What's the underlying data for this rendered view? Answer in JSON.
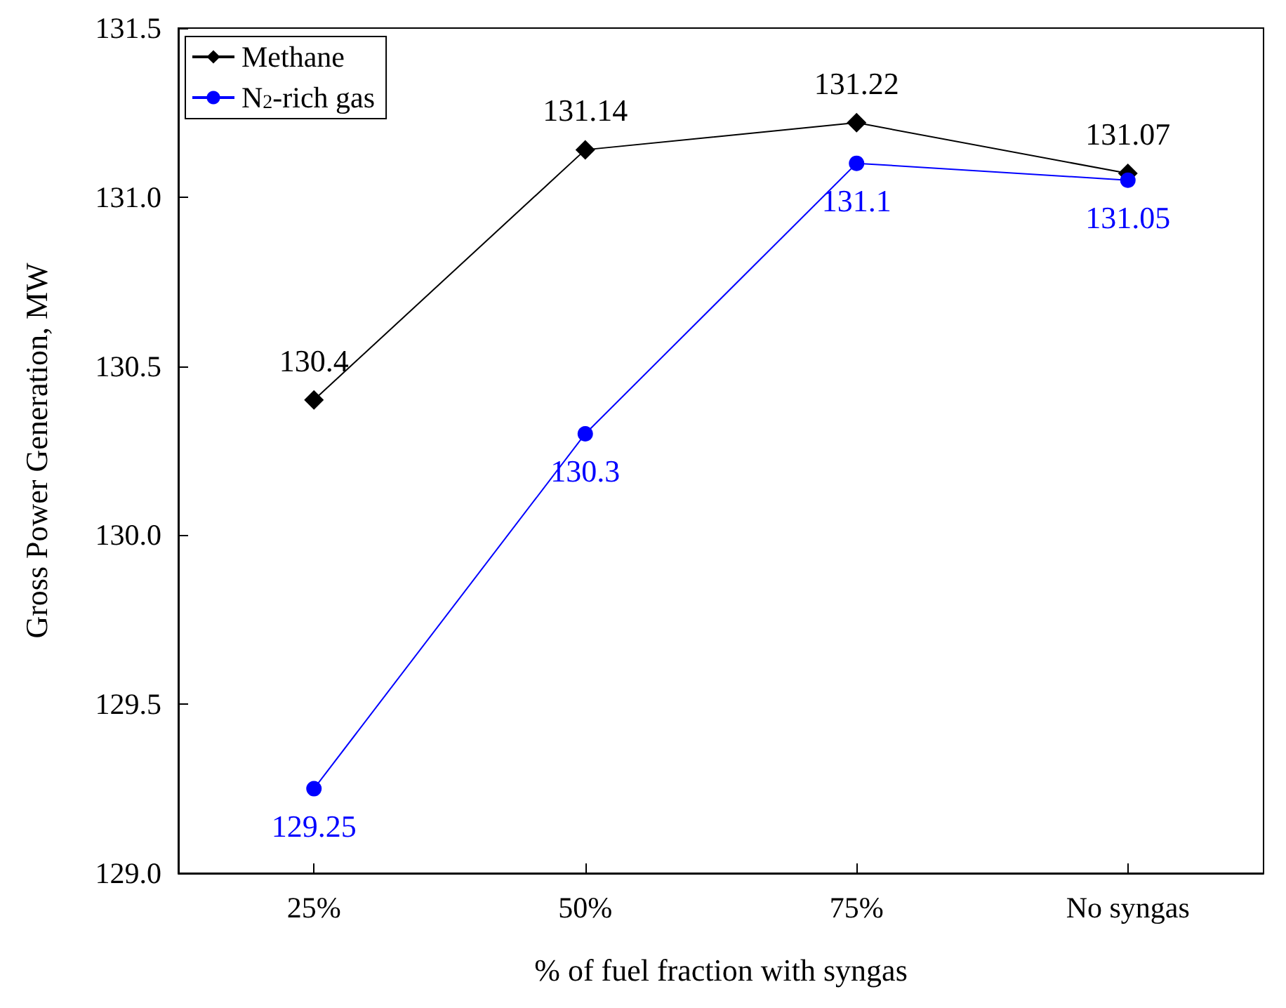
{
  "chart_data": {
    "type": "line",
    "xlabel": "% of fuel fraction with syngas",
    "ylabel": "Gross Power Generation, MW",
    "categories": [
      "25%",
      "50%",
      "75%",
      "No syngas"
    ],
    "series": [
      {
        "name": "Methane",
        "color": "#000000",
        "marker": "diamond",
        "values": [
          130.4,
          131.14,
          131.22,
          131.07
        ],
        "value_labels": [
          "130.4",
          "131.14",
          "131.22",
          "131.07"
        ]
      },
      {
        "name": "N$_{2}$-rich gas",
        "color": "#0000ff",
        "marker": "circle",
        "values": [
          129.25,
          130.3,
          131.1,
          131.05
        ],
        "value_labels": [
          "129.25",
          "130.3",
          "131.1",
          "131.05"
        ]
      }
    ],
    "ylim": [
      129,
      131.5
    ],
    "yticks": [
      {
        "value": 129,
        "label": "129.0"
      },
      {
        "value": 129.5,
        "label": "129.5"
      },
      {
        "value": 130,
        "label": "130.0"
      },
      {
        "value": 130.5,
        "label": "130.5"
      },
      {
        "value": 131,
        "label": "131.0"
      },
      {
        "value": 131.5,
        "label": "131.5"
      }
    ],
    "grid": false,
    "legend": "top left",
    "line_style": "solid"
  }
}
